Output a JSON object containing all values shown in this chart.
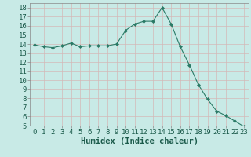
{
  "x": [
    0,
    1,
    2,
    3,
    4,
    5,
    6,
    7,
    8,
    9,
    10,
    11,
    12,
    13,
    14,
    15,
    16,
    17,
    18,
    19,
    20,
    21,
    22,
    23
  ],
  "y": [
    13.9,
    13.7,
    13.6,
    13.8,
    14.1,
    13.7,
    13.8,
    13.8,
    13.8,
    14.0,
    15.5,
    16.2,
    16.5,
    16.5,
    18.0,
    16.2,
    13.7,
    11.7,
    9.5,
    7.9,
    6.6,
    6.1,
    5.5,
    4.9
  ],
  "xlabel": "Humidex (Indice chaleur)",
  "bg_color": "#c8eae6",
  "grid_color": "#d4b8b8",
  "line_color": "#2a7a66",
  "marker_color": "#2a7a66",
  "ylim": [
    5,
    18.5
  ],
  "xlim": [
    -0.5,
    23.5
  ],
  "yticks": [
    5,
    6,
    7,
    8,
    9,
    10,
    11,
    12,
    13,
    14,
    15,
    16,
    17,
    18
  ],
  "xticks": [
    0,
    1,
    2,
    3,
    4,
    5,
    6,
    7,
    8,
    9,
    10,
    11,
    12,
    13,
    14,
    15,
    16,
    17,
    18,
    19,
    20,
    21,
    22,
    23
  ],
  "xlabel_fontsize": 7.5,
  "tick_fontsize": 6.5
}
